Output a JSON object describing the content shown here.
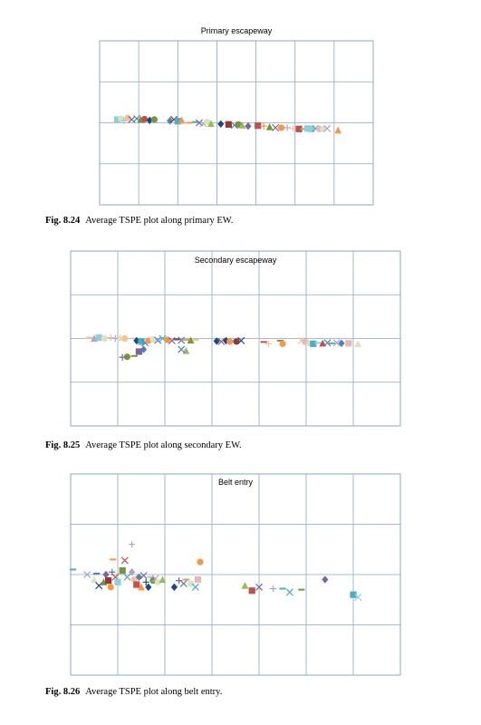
{
  "figures": [
    {
      "fig_label": "Fig. 8.24",
      "caption": "Average TSPE plot along primary EW."
    },
    {
      "fig_label": "Fig. 8.25",
      "caption": "Average TSPE plot along secondary EW."
    },
    {
      "fig_label": "Fig. 8.26",
      "caption": "Average TSPE plot along belt entry."
    }
  ],
  "palette": {
    "gridline": "#8ea7c0",
    "blue": "#4f81bd",
    "red": "#c0504d",
    "green": "#9bbb59",
    "purple": "#8064a2",
    "teal": "#4bacc6",
    "orange": "#f79646",
    "navy": "#1f497d",
    "darkred": "#943634",
    "olive": "#77933c",
    "lavender": "#b3a2c7",
    "lightblue": "#92cddc",
    "peach": "#fac090",
    "pink": "#e6b9b8",
    "lightgreen": "#d7e4bd"
  },
  "chart_data": [
    {
      "type": "scatter",
      "title": "Primary escapeway",
      "xlabel": "",
      "ylabel": "",
      "xlim": [
        0,
        7
      ],
      "ylim": [
        0,
        4
      ],
      "grid": true,
      "legend": "none",
      "points": [
        {
          "x": 0.45,
          "y": 2.08,
          "m": "square",
          "c": "lightblue"
        },
        {
          "x": 0.55,
          "y": 2.1,
          "m": "circle",
          "c": "lightgreen"
        },
        {
          "x": 0.62,
          "y": 2.05,
          "m": "cross",
          "c": "lightblue"
        },
        {
          "x": 0.72,
          "y": 2.12,
          "m": "circle",
          "c": "peach"
        },
        {
          "x": 0.82,
          "y": 2.08,
          "m": "x",
          "c": "purple"
        },
        {
          "x": 0.95,
          "y": 2.1,
          "m": "x",
          "c": "blue"
        },
        {
          "x": 1.05,
          "y": 2.08,
          "m": "triangle",
          "c": "olive"
        },
        {
          "x": 1.15,
          "y": 2.09,
          "m": "circle",
          "c": "red"
        },
        {
          "x": 1.28,
          "y": 2.06,
          "m": "diamond",
          "c": "navy"
        },
        {
          "x": 1.4,
          "y": 2.08,
          "m": "circle",
          "c": "olive"
        },
        {
          "x": 1.8,
          "y": 2.05,
          "m": "diamond",
          "c": "blue"
        },
        {
          "x": 1.9,
          "y": 2.08,
          "m": "x",
          "c": "darkred"
        },
        {
          "x": 2.0,
          "y": 2.04,
          "m": "square",
          "c": "teal"
        },
        {
          "x": 2.1,
          "y": 2.06,
          "m": "triangle",
          "c": "orange"
        },
        {
          "x": 2.3,
          "y": 2.0,
          "m": "dash",
          "c": "orange"
        },
        {
          "x": 2.45,
          "y": 2.02,
          "m": "dash",
          "c": "teal"
        },
        {
          "x": 2.55,
          "y": 2.0,
          "m": "x",
          "c": "purple"
        },
        {
          "x": 2.65,
          "y": 1.98,
          "m": "x",
          "c": "lavender"
        },
        {
          "x": 2.75,
          "y": 2.02,
          "m": "circle",
          "c": "lightgreen"
        },
        {
          "x": 2.85,
          "y": 1.98,
          "m": "triangle",
          "c": "green"
        },
        {
          "x": 3.1,
          "y": 1.97,
          "m": "diamond",
          "c": "navy"
        },
        {
          "x": 3.3,
          "y": 1.96,
          "m": "square",
          "c": "darkred"
        },
        {
          "x": 3.45,
          "y": 1.94,
          "m": "x",
          "c": "blue"
        },
        {
          "x": 3.55,
          "y": 1.96,
          "m": "circle",
          "c": "olive"
        },
        {
          "x": 3.65,
          "y": 1.94,
          "m": "triangle",
          "c": "green"
        },
        {
          "x": 3.8,
          "y": 1.92,
          "m": "diamond",
          "c": "purple"
        },
        {
          "x": 4.05,
          "y": 1.93,
          "m": "square",
          "c": "red"
        },
        {
          "x": 4.2,
          "y": 1.92,
          "m": "cross",
          "c": "orange"
        },
        {
          "x": 4.35,
          "y": 1.9,
          "m": "triangle",
          "c": "olive"
        },
        {
          "x": 4.5,
          "y": 1.88,
          "m": "x",
          "c": "purple"
        },
        {
          "x": 4.65,
          "y": 1.88,
          "m": "circle",
          "c": "orange"
        },
        {
          "x": 4.8,
          "y": 1.88,
          "m": "cross",
          "c": "lavender"
        },
        {
          "x": 4.95,
          "y": 1.86,
          "m": "cross",
          "c": "peach"
        },
        {
          "x": 5.1,
          "y": 1.85,
          "m": "square",
          "c": "red"
        },
        {
          "x": 5.22,
          "y": 1.85,
          "m": "dash",
          "c": "green"
        },
        {
          "x": 5.32,
          "y": 1.86,
          "m": "square",
          "c": "lightblue"
        },
        {
          "x": 5.42,
          "y": 1.85,
          "m": "square",
          "c": "lightblue"
        },
        {
          "x": 5.52,
          "y": 1.86,
          "m": "x",
          "c": "teal"
        },
        {
          "x": 5.62,
          "y": 1.85,
          "m": "circle",
          "c": "pink"
        },
        {
          "x": 5.72,
          "y": 1.85,
          "m": "circle",
          "c": "lightgreen"
        },
        {
          "x": 5.82,
          "y": 1.86,
          "m": "x",
          "c": "lavender"
        },
        {
          "x": 6.1,
          "y": 1.82,
          "m": "triangle",
          "c": "orange"
        }
      ]
    },
    {
      "type": "scatter",
      "title": "Secondary escapeway",
      "xlabel": "",
      "ylabel": "",
      "xlim": [
        0,
        7
      ],
      "ylim": [
        0,
        4
      ],
      "grid": true,
      "legend": "none",
      "points": [
        {
          "x": 0.4,
          "y": 2.02,
          "m": "dash",
          "c": "peach"
        },
        {
          "x": 0.5,
          "y": 2.0,
          "m": "triangle",
          "c": "lavender"
        },
        {
          "x": 0.6,
          "y": 2.02,
          "m": "square",
          "c": "lightblue"
        },
        {
          "x": 0.72,
          "y": 2.0,
          "m": "circle",
          "c": "lightgreen"
        },
        {
          "x": 0.85,
          "y": 2.02,
          "m": "cross",
          "c": "pink"
        },
        {
          "x": 0.95,
          "y": 2.0,
          "m": "cross",
          "c": "lavender"
        },
        {
          "x": 1.05,
          "y": 2.02,
          "m": "triangle",
          "c": "lightgreen"
        },
        {
          "x": 1.15,
          "y": 2.0,
          "m": "circle",
          "c": "peach"
        },
        {
          "x": 1.4,
          "y": 1.95,
          "m": "diamond",
          "c": "navy"
        },
        {
          "x": 1.5,
          "y": 1.93,
          "m": "square",
          "c": "teal"
        },
        {
          "x": 1.58,
          "y": 1.9,
          "m": "x",
          "c": "blue"
        },
        {
          "x": 1.65,
          "y": 1.95,
          "m": "circle",
          "c": "orange"
        },
        {
          "x": 1.55,
          "y": 1.75,
          "m": "diamond",
          "c": "blue"
        },
        {
          "x": 1.45,
          "y": 1.7,
          "m": "square",
          "c": "purple"
        },
        {
          "x": 1.35,
          "y": 1.6,
          "m": "dash",
          "c": "olive"
        },
        {
          "x": 1.2,
          "y": 1.58,
          "m": "circle",
          "c": "olive"
        },
        {
          "x": 1.1,
          "y": 1.57,
          "m": "cross",
          "c": "purple"
        },
        {
          "x": 1.75,
          "y": 1.98,
          "m": "circle",
          "c": "lightgreen"
        },
        {
          "x": 1.85,
          "y": 1.96,
          "m": "x",
          "c": "blue"
        },
        {
          "x": 1.95,
          "y": 2.0,
          "m": "x",
          "c": "teal"
        },
        {
          "x": 2.05,
          "y": 1.97,
          "m": "circle",
          "c": "orange"
        },
        {
          "x": 2.15,
          "y": 1.95,
          "m": "x",
          "c": "purple"
        },
        {
          "x": 2.25,
          "y": 1.98,
          "m": "dash",
          "c": "darkred"
        },
        {
          "x": 2.35,
          "y": 1.96,
          "m": "x",
          "c": "blue"
        },
        {
          "x": 2.45,
          "y": 1.97,
          "m": "dash",
          "c": "orange"
        },
        {
          "x": 2.55,
          "y": 1.96,
          "m": "triangle",
          "c": "olive"
        },
        {
          "x": 2.65,
          "y": 1.97,
          "m": "dash",
          "c": "peach"
        },
        {
          "x": 2.45,
          "y": 1.72,
          "m": "triangle",
          "c": "green"
        },
        {
          "x": 2.35,
          "y": 1.75,
          "m": "x",
          "c": "blue"
        },
        {
          "x": 3.1,
          "y": 1.94,
          "m": "diamond",
          "c": "navy"
        },
        {
          "x": 3.2,
          "y": 1.93,
          "m": "x",
          "c": "purple"
        },
        {
          "x": 3.3,
          "y": 1.95,
          "m": "diamond",
          "c": "navy"
        },
        {
          "x": 3.38,
          "y": 1.93,
          "m": "circle",
          "c": "orange"
        },
        {
          "x": 3.45,
          "y": 1.94,
          "m": "dash",
          "c": "lavender"
        },
        {
          "x": 3.52,
          "y": 1.93,
          "m": "circle",
          "c": "darkred"
        },
        {
          "x": 3.62,
          "y": 1.95,
          "m": "x",
          "c": "navy"
        },
        {
          "x": 4.1,
          "y": 1.92,
          "m": "dash",
          "c": "red"
        },
        {
          "x": 4.2,
          "y": 1.88,
          "m": "cross",
          "c": "peach"
        },
        {
          "x": 4.45,
          "y": 1.95,
          "m": "dash",
          "c": "olive"
        },
        {
          "x": 4.5,
          "y": 1.88,
          "m": "circle",
          "c": "orange"
        },
        {
          "x": 4.9,
          "y": 1.95,
          "m": "x",
          "c": "peach"
        },
        {
          "x": 4.98,
          "y": 1.92,
          "m": "circle",
          "c": "pink"
        },
        {
          "x": 5.05,
          "y": 1.9,
          "m": "triangle",
          "c": "lightgreen"
        },
        {
          "x": 5.15,
          "y": 1.88,
          "m": "square",
          "c": "teal"
        },
        {
          "x": 5.25,
          "y": 1.9,
          "m": "dash",
          "c": "lightblue"
        },
        {
          "x": 5.35,
          "y": 1.89,
          "m": "triangle",
          "c": "red"
        },
        {
          "x": 5.45,
          "y": 1.9,
          "m": "x",
          "c": "blue"
        },
        {
          "x": 5.55,
          "y": 1.89,
          "m": "dash",
          "c": "teal"
        },
        {
          "x": 5.65,
          "y": 1.9,
          "m": "x",
          "c": "lavender"
        },
        {
          "x": 5.75,
          "y": 1.89,
          "m": "diamond",
          "c": "blue"
        },
        {
          "x": 5.9,
          "y": 1.89,
          "m": "square",
          "c": "pink"
        },
        {
          "x": 6.1,
          "y": 1.88,
          "m": "triangle",
          "c": "lightgreen"
        }
      ]
    },
    {
      "type": "scatter",
      "title": "Belt entry",
      "xlabel": "",
      "ylabel": "",
      "xlim": [
        0,
        7
      ],
      "ylim": [
        0,
        4
      ],
      "grid": true,
      "legend": "none",
      "points": [
        {
          "x": 0.05,
          "y": 2.1,
          "m": "dash",
          "c": "teal"
        },
        {
          "x": 0.35,
          "y": 2.0,
          "m": "x",
          "c": "lavender"
        },
        {
          "x": 0.5,
          "y": 1.9,
          "m": "triangle",
          "c": "lightgreen"
        },
        {
          "x": 0.55,
          "y": 2.02,
          "m": "dash",
          "c": "blue"
        },
        {
          "x": 0.6,
          "y": 1.78,
          "m": "x",
          "c": "navy"
        },
        {
          "x": 0.7,
          "y": 1.85,
          "m": "triangle",
          "c": "olive"
        },
        {
          "x": 0.75,
          "y": 2.0,
          "m": "diamond",
          "c": "purple"
        },
        {
          "x": 0.8,
          "y": 1.88,
          "m": "square",
          "c": "darkred"
        },
        {
          "x": 0.85,
          "y": 1.75,
          "m": "circle",
          "c": "orange"
        },
        {
          "x": 0.88,
          "y": 2.05,
          "m": "cross",
          "c": "blue"
        },
        {
          "x": 0.95,
          "y": 1.95,
          "m": "x",
          "c": "red"
        },
        {
          "x": 1.0,
          "y": 1.85,
          "m": "square",
          "c": "lightblue"
        },
        {
          "x": 0.9,
          "y": 2.3,
          "m": "dash",
          "c": "orange"
        },
        {
          "x": 1.15,
          "y": 2.28,
          "m": "x",
          "c": "red"
        },
        {
          "x": 1.3,
          "y": 2.6,
          "m": "cross",
          "c": "lavender"
        },
        {
          "x": 1.1,
          "y": 2.08,
          "m": "square",
          "c": "olive"
        },
        {
          "x": 1.2,
          "y": 1.95,
          "m": "x",
          "c": "teal"
        },
        {
          "x": 1.3,
          "y": 2.05,
          "m": "diamond",
          "c": "lavender"
        },
        {
          "x": 1.35,
          "y": 1.9,
          "m": "circle",
          "c": "peach"
        },
        {
          "x": 1.4,
          "y": 1.8,
          "m": "square",
          "c": "red"
        },
        {
          "x": 1.45,
          "y": 1.95,
          "m": "diamond",
          "c": "blue"
        },
        {
          "x": 1.5,
          "y": 1.75,
          "m": "triangle",
          "c": "orange"
        },
        {
          "x": 1.55,
          "y": 1.98,
          "m": "x",
          "c": "purple"
        },
        {
          "x": 1.6,
          "y": 1.85,
          "m": "cross",
          "c": "navy"
        },
        {
          "x": 1.65,
          "y": 1.75,
          "m": "diamond",
          "c": "navy"
        },
        {
          "x": 1.7,
          "y": 1.95,
          "m": "dash",
          "c": "lightblue"
        },
        {
          "x": 1.75,
          "y": 1.88,
          "m": "circle",
          "c": "olive"
        },
        {
          "x": 1.8,
          "y": 1.92,
          "m": "x",
          "c": "lavender"
        },
        {
          "x": 1.85,
          "y": 1.85,
          "m": "circle",
          "c": "lightgreen"
        },
        {
          "x": 1.95,
          "y": 1.9,
          "m": "triangle",
          "c": "green"
        },
        {
          "x": 2.2,
          "y": 1.75,
          "m": "diamond",
          "c": "navy"
        },
        {
          "x": 2.3,
          "y": 1.88,
          "m": "cross",
          "c": "purple"
        },
        {
          "x": 2.4,
          "y": 1.82,
          "m": "x",
          "c": "blue"
        },
        {
          "x": 2.45,
          "y": 1.9,
          "m": "dash",
          "c": "orange"
        },
        {
          "x": 2.55,
          "y": 1.82,
          "m": "circle",
          "c": "lightgreen"
        },
        {
          "x": 2.65,
          "y": 1.75,
          "m": "x",
          "c": "teal"
        },
        {
          "x": 2.7,
          "y": 1.9,
          "m": "square",
          "c": "pink"
        },
        {
          "x": 2.75,
          "y": 2.25,
          "m": "circle",
          "c": "orange"
        },
        {
          "x": 3.7,
          "y": 1.78,
          "m": "triangle",
          "c": "green"
        },
        {
          "x": 3.85,
          "y": 1.68,
          "m": "square",
          "c": "red"
        },
        {
          "x": 4.0,
          "y": 1.75,
          "m": "x",
          "c": "purple"
        },
        {
          "x": 4.3,
          "y": 1.72,
          "m": "cross",
          "c": "lavender"
        },
        {
          "x": 4.5,
          "y": 1.72,
          "m": "dash",
          "c": "teal"
        },
        {
          "x": 4.65,
          "y": 1.65,
          "m": "x",
          "c": "teal"
        },
        {
          "x": 4.9,
          "y": 1.7,
          "m": "dash",
          "c": "olive"
        },
        {
          "x": 5.4,
          "y": 1.9,
          "m": "diamond",
          "c": "purple"
        },
        {
          "x": 6.0,
          "y": 1.6,
          "m": "square",
          "c": "teal"
        },
        {
          "x": 6.1,
          "y": 1.55,
          "m": "x",
          "c": "lightblue"
        }
      ]
    }
  ]
}
